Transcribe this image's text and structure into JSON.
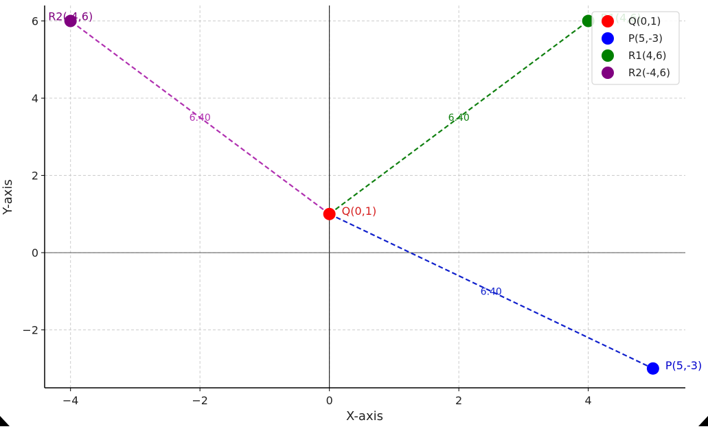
{
  "chart_data": {
    "type": "scatter",
    "title": "",
    "xlabel": "X-axis",
    "ylabel": "Y-axis",
    "xlim": [
      -4.4,
      5.5
    ],
    "ylim": [
      -3.5,
      6.4
    ],
    "xticks": [
      -4,
      -2,
      0,
      2,
      4
    ],
    "yticks": [
      -2,
      0,
      2,
      4,
      6
    ],
    "grid": true,
    "legend_position": "top-right",
    "points": [
      {
        "name": "Q(0,1)",
        "x": 0,
        "y": 1,
        "color": "#ff0000",
        "label_color": "#d62020"
      },
      {
        "name": "P(5,-3)",
        "x": 5,
        "y": -3,
        "color": "#0000ff",
        "label_color": "#0000cc"
      },
      {
        "name": "R1(4,6)",
        "x": 4,
        "y": 6,
        "color": "#008000",
        "label_color": "#008000"
      },
      {
        "name": "R2(-4,6)",
        "x": -4,
        "y": 6,
        "color": "#800080",
        "label_color": "#800080"
      }
    ],
    "segments": [
      {
        "from": [
          0,
          1
        ],
        "to": [
          -4,
          6
        ],
        "length_label": "6.40",
        "color": "#b030b0"
      },
      {
        "from": [
          0,
          1
        ],
        "to": [
          4,
          6
        ],
        "length_label": "6.40",
        "color": "#108010"
      },
      {
        "from": [
          0,
          1
        ],
        "to": [
          5,
          -3
        ],
        "length_label": "6.40",
        "color": "#1020cc"
      }
    ]
  }
}
